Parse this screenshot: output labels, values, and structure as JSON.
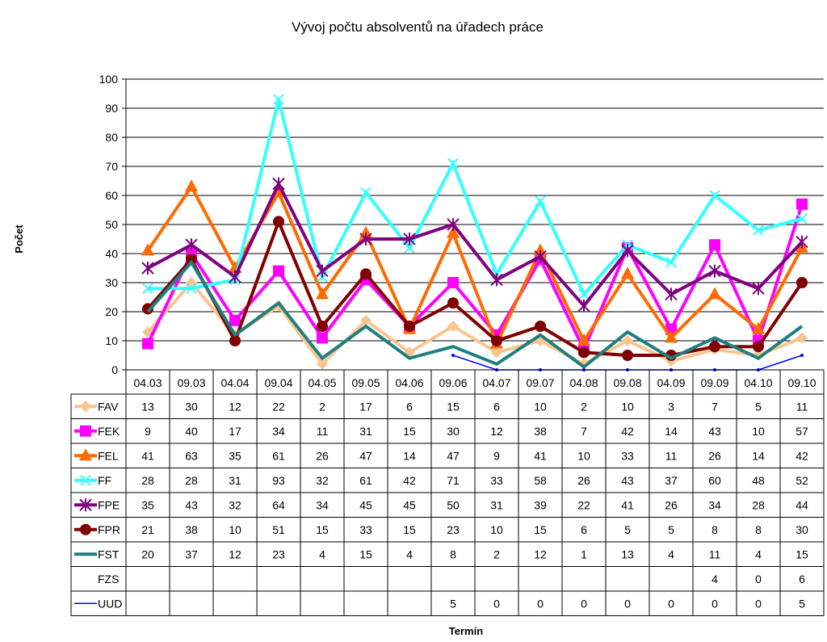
{
  "chart_data": {
    "type": "line",
    "title": "Vývoj počtu absolventů na úřadech práce",
    "xlabel": "Termín",
    "ylabel": "Počet",
    "ylim": [
      0,
      100
    ],
    "yticks": [
      0,
      10,
      20,
      30,
      40,
      50,
      60,
      70,
      80,
      90,
      100
    ],
    "grid": true,
    "legend": "data-table",
    "categories": [
      "04.03",
      "09.03",
      "04.04",
      "09.04",
      "04.05",
      "09.05",
      "04.06",
      "09.06",
      "04.07",
      "09.07",
      "04.08",
      "09.08",
      "04.09",
      "09.09",
      "04.10",
      "09.10"
    ],
    "series": [
      {
        "name": "FAV",
        "color": "#f9c58f",
        "marker": "diamond",
        "values": [
          13,
          30,
          12,
          22,
          2,
          17,
          6,
          15,
          6,
          10,
          2,
          10,
          3,
          7,
          5,
          11
        ]
      },
      {
        "name": "FEK",
        "color": "#ff00ff",
        "marker": "square",
        "values": [
          9,
          40,
          17,
          34,
          11,
          31,
          15,
          30,
          12,
          38,
          7,
          42,
          14,
          43,
          10,
          57
        ]
      },
      {
        "name": "FEL",
        "color": "#ff6a00",
        "marker": "triangle",
        "values": [
          41,
          63,
          35,
          61,
          26,
          47,
          14,
          47,
          9,
          41,
          10,
          33,
          11,
          26,
          14,
          42
        ]
      },
      {
        "name": "FF",
        "color": "#33ffff",
        "marker": "x",
        "values": [
          28,
          28,
          31,
          93,
          32,
          61,
          42,
          71,
          33,
          58,
          26,
          43,
          37,
          60,
          48,
          52
        ]
      },
      {
        "name": "FPE",
        "color": "#800080",
        "marker": "star",
        "values": [
          35,
          43,
          32,
          64,
          34,
          45,
          45,
          50,
          31,
          39,
          22,
          41,
          26,
          34,
          28,
          44
        ]
      },
      {
        "name": "FPR",
        "color": "#800000",
        "marker": "circle",
        "values": [
          21,
          38,
          10,
          51,
          15,
          33,
          15,
          23,
          10,
          15,
          6,
          5,
          5,
          8,
          8,
          30
        ]
      },
      {
        "name": "FST",
        "color": "#1f7f7f",
        "marker": "none",
        "values": [
          20,
          37,
          12,
          23,
          4,
          15,
          4,
          8,
          2,
          12,
          1,
          13,
          4,
          11,
          4,
          15
        ]
      },
      {
        "name": "FZS",
        "color": "#ffffff",
        "marker": "none",
        "values": [
          null,
          null,
          null,
          null,
          null,
          null,
          null,
          null,
          null,
          null,
          null,
          null,
          null,
          4,
          0,
          6
        ]
      },
      {
        "name": "UUD",
        "color": "#0000ff",
        "marker": "dot",
        "values": [
          null,
          null,
          null,
          null,
          null,
          null,
          null,
          5,
          0,
          0,
          0,
          0,
          0,
          0,
          0,
          5
        ]
      }
    ]
  }
}
